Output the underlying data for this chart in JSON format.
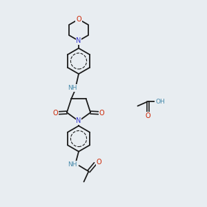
{
  "bg_color": "#e8edf1",
  "bond_color": "#1a1a1a",
  "N_color": "#3333cc",
  "O_color": "#cc2200",
  "NH_color": "#4488aa",
  "H_color": "#4488aa",
  "font_size": 7.0,
  "fig_size": [
    3.0,
    3.0
  ],
  "dpi": 100,
  "xlim": [
    0,
    10
  ],
  "ylim": [
    0,
    10
  ]
}
